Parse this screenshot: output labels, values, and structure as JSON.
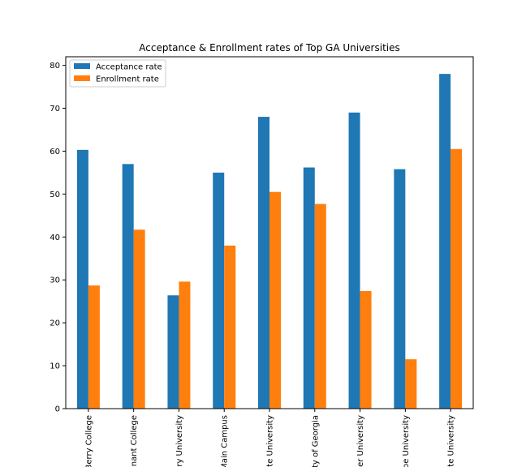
{
  "chart_data": {
    "type": "bar",
    "title": "Acceptance & Enrollment rates of Top GA Universities",
    "xlabel": "",
    "ylabel": "",
    "ylim": [
      0,
      82.0
    ],
    "yticks": [
      0,
      10,
      20,
      30,
      40,
      50,
      60,
      70,
      80
    ],
    "categories": [
      "Berry College",
      "nant College",
      "ry University",
      "Main Campus",
      "te University",
      "ty of Georgia",
      "er University",
      "pe University",
      "te University"
    ],
    "series": [
      {
        "name": "Acceptance rate",
        "color": "#1f77b4",
        "values": [
          60.3,
          57.0,
          26.4,
          55.0,
          68.0,
          56.2,
          69.0,
          55.8,
          78.0
        ]
      },
      {
        "name": "Enrollment rate",
        "color": "#ff7f0e",
        "values": [
          28.7,
          41.7,
          29.6,
          38.0,
          50.5,
          47.7,
          27.4,
          11.5,
          60.5
        ]
      }
    ],
    "legend_position": "top-left",
    "grid": false
  }
}
